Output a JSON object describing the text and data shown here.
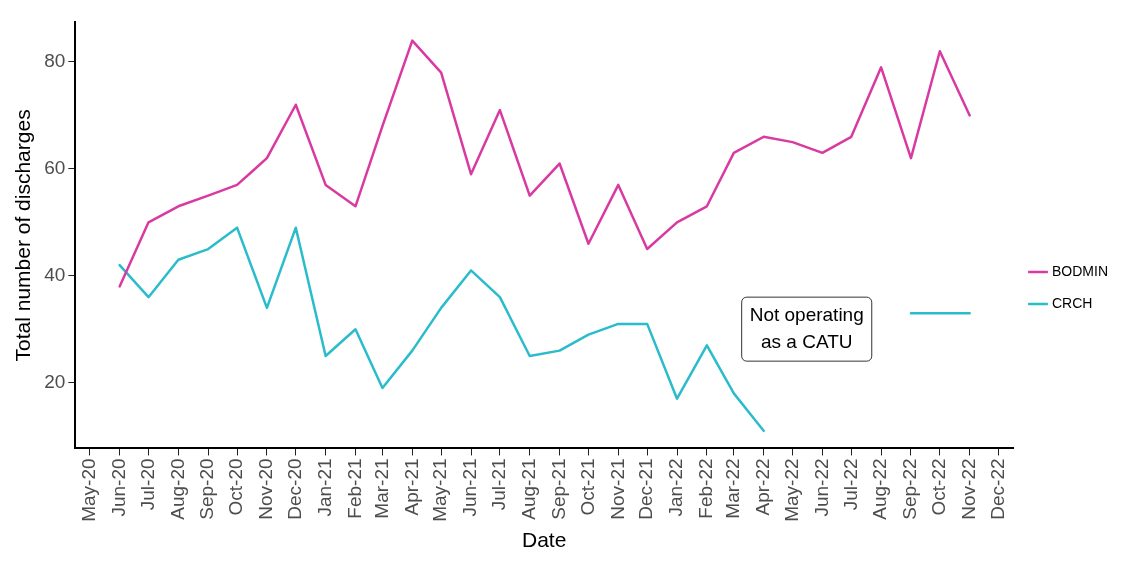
{
  "chart_data": {
    "type": "line",
    "xlabel": "Date",
    "ylabel": "Total number of discharges",
    "x": [
      "2020-06",
      "2020-07",
      "2020-08",
      "2020-09",
      "2020-10",
      "2020-11",
      "2020-12",
      "2021-01",
      "2021-02",
      "2021-03",
      "2021-04",
      "2021-05",
      "2021-06",
      "2021-07",
      "2021-08",
      "2021-09",
      "2021-10",
      "2021-11",
      "2021-12",
      "2022-01",
      "2022-02",
      "2022-03",
      "2022-04",
      "2022-05",
      "2022-06",
      "2022-07",
      "2022-08",
      "2022-09",
      "2022-10",
      "2022-11"
    ],
    "series": [
      {
        "name": "BODMIN",
        "color": "#d93aa2",
        "values": [
          38,
          50,
          53,
          55,
          57,
          62,
          72,
          57,
          53,
          68,
          84,
          78,
          59,
          71,
          55,
          61,
          46,
          57,
          45,
          50,
          53,
          63,
          66,
          65,
          63,
          66,
          79,
          62,
          82,
          70
        ]
      },
      {
        "name": "CRCH",
        "color": "#2bbccb",
        "values": [
          42,
          36,
          43,
          45,
          49,
          34,
          49,
          25,
          30,
          19,
          26,
          34,
          41,
          36,
          25,
          26,
          29,
          31,
          31,
          17,
          27,
          18,
          11,
          null,
          null,
          null,
          null,
          33,
          33,
          33
        ]
      }
    ],
    "xlim": [
      "2020-04-16",
      "2022-12-16"
    ],
    "xticks": [
      {
        "value": "2020-05",
        "label": "May-20"
      },
      {
        "value": "2020-06",
        "label": "Jun-20"
      },
      {
        "value": "2020-07",
        "label": "Jul-20"
      },
      {
        "value": "2020-08",
        "label": "Aug-20"
      },
      {
        "value": "2020-09",
        "label": "Sep-20"
      },
      {
        "value": "2020-10",
        "label": "Oct-20"
      },
      {
        "value": "2020-11",
        "label": "Nov-20"
      },
      {
        "value": "2020-12",
        "label": "Dec-20"
      },
      {
        "value": "2021-01",
        "label": "Jan-21"
      },
      {
        "value": "2021-02",
        "label": "Feb-21"
      },
      {
        "value": "2021-03",
        "label": "Mar-21"
      },
      {
        "value": "2021-04",
        "label": "Apr-21"
      },
      {
        "value": "2021-05",
        "label": "May-21"
      },
      {
        "value": "2021-06",
        "label": "Jun-21"
      },
      {
        "value": "2021-07",
        "label": "Jul-21"
      },
      {
        "value": "2021-08",
        "label": "Aug-21"
      },
      {
        "value": "2021-09",
        "label": "Sep-21"
      },
      {
        "value": "2021-10",
        "label": "Oct-21"
      },
      {
        "value": "2021-11",
        "label": "Nov-21"
      },
      {
        "value": "2021-12",
        "label": "Dec-21"
      },
      {
        "value": "2022-01",
        "label": "Jan-22"
      },
      {
        "value": "2022-02",
        "label": "Feb-22"
      },
      {
        "value": "2022-03",
        "label": "Mar-22"
      },
      {
        "value": "2022-04",
        "label": "Apr-22"
      },
      {
        "value": "2022-05",
        "label": "May-22"
      },
      {
        "value": "2022-06",
        "label": "Jun-22"
      },
      {
        "value": "2022-07",
        "label": "Jul-22"
      },
      {
        "value": "2022-08",
        "label": "Aug-22"
      },
      {
        "value": "2022-09",
        "label": "Sep-22"
      },
      {
        "value": "2022-10",
        "label": "Oct-22"
      },
      {
        "value": "2022-11",
        "label": "Nov-22"
      },
      {
        "value": "2022-12",
        "label": "Dec-22"
      }
    ],
    "ylim": [
      7.7,
      87.4
    ],
    "yticks": [
      20,
      40,
      60,
      80
    ],
    "grid": false,
    "legend": "right",
    "marker": "none",
    "line_style": "solid",
    "annotations": [
      "Not operating as a CATU"
    ]
  }
}
